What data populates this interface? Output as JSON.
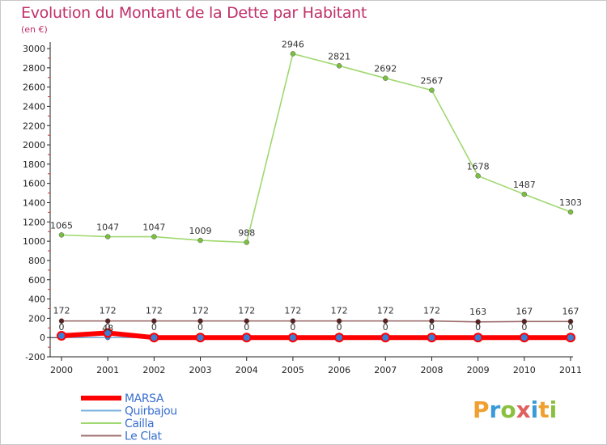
{
  "title": "Evolution du Montant de la Dette par Habitant",
  "unit": "(en €)",
  "brand": {
    "letters": [
      "P",
      "r",
      "o",
      "x",
      "i",
      "t",
      "i"
    ],
    "colors": [
      "#f0a030",
      "#3a9ad8",
      "#8ac040",
      "#e06060",
      "#3a9ad8",
      "#f0a030",
      "#8ac040"
    ]
  },
  "chart_data": {
    "type": "line",
    "title": "Evolution du Montant de la Dette par Habitant",
    "ylabel": "(en €)",
    "xlabel": "",
    "x": [
      "2000",
      "2001",
      "2002",
      "2003",
      "2004",
      "2005",
      "2006",
      "2007",
      "2008",
      "2009",
      "2010",
      "2011"
    ],
    "ylim": [
      -200,
      3000
    ],
    "yticks": [
      "-200",
      "0",
      "200",
      "400",
      "600",
      "800",
      "1000",
      "1200",
      "1400",
      "1600",
      "1800",
      "2000",
      "2200",
      "2400",
      "2600",
      "2800",
      "3000"
    ],
    "grid": false,
    "legend_position": "bottom-left",
    "series": [
      {
        "name": "MARSA",
        "color": "#ff0000",
        "marker_color": "#3a7fd5",
        "values": [
          18,
          48,
          0,
          0,
          0,
          0,
          0,
          0,
          0,
          0,
          0,
          0
        ],
        "labels": [
          "",
          "48",
          "",
          "",
          "",
          "",
          "",
          "",
          "",
          "",
          "",
          ""
        ]
      },
      {
        "name": "Quirbajou",
        "color": "#7ab0dc",
        "marker_color": "#3a7fd5",
        "values": [
          0,
          0,
          0,
          0,
          0,
          0,
          0,
          0,
          0,
          0,
          0,
          0
        ],
        "labels": [
          "0",
          "0",
          "0",
          "0",
          "0",
          "0",
          "0",
          "0",
          "0",
          "0",
          "0",
          "0"
        ]
      },
      {
        "name": "Cailla",
        "color": "#a0d870",
        "marker_color": "#7ac040",
        "values": [
          1065,
          1047,
          1047,
          1009,
          988,
          2946,
          2821,
          2692,
          2567,
          1678,
          1487,
          1303
        ],
        "labels": [
          "1065",
          "1047",
          "1047",
          "1009",
          "988",
          "2946",
          "2821",
          "2692",
          "2567",
          "1678",
          "1487",
          "1303"
        ]
      },
      {
        "name": "Le Clat",
        "color": "#a07070",
        "marker_color": "#5a1f1f",
        "values": [
          172,
          172,
          172,
          172,
          172,
          172,
          172,
          172,
          172,
          163,
          167,
          167
        ],
        "labels": [
          "172",
          "172",
          "172",
          "172",
          "172",
          "172",
          "172",
          "172",
          "172",
          "163",
          "167",
          "167"
        ]
      }
    ],
    "legend": [
      "MARSA",
      "Quirbajou",
      "Cailla",
      "Le Clat"
    ]
  }
}
